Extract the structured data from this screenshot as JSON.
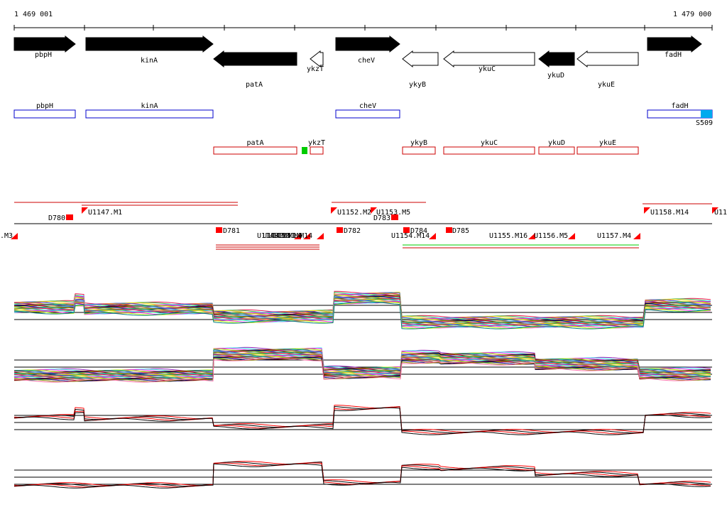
{
  "coordinates": {
    "start": "1 469 001",
    "end": "1 479 000"
  },
  "genes": [
    {
      "name": "pbpH",
      "strand": "+",
      "filled": true
    },
    {
      "name": "kinA",
      "strand": "+",
      "filled": true
    },
    {
      "name": "patA",
      "strand": "-",
      "filled": true
    },
    {
      "name": "ykzT",
      "strand": "-",
      "filled": false
    },
    {
      "name": "cheV",
      "strand": "+",
      "filled": true
    },
    {
      "name": "ykyB",
      "strand": "-",
      "filled": false
    },
    {
      "name": "ykuC",
      "strand": "-",
      "filled": false
    },
    {
      "name": "ykuD",
      "strand": "-",
      "filled": true
    },
    {
      "name": "ykuE",
      "strand": "-",
      "filled": false
    },
    {
      "name": "fadH",
      "strand": "+",
      "filled": true
    }
  ],
  "plus_boxes": [
    "pbpH",
    "kinA",
    "cheV",
    "fadH"
  ],
  "minus_boxes": [
    "patA",
    "ykzT",
    "ykyB",
    "ykuC",
    "ykuD",
    "ykuE"
  ],
  "signal_label": "S509",
  "upper_segments": [
    "U1147.M1",
    "U1152.M2",
    "U1153.M5",
    "U1158.M14",
    "U11"
  ],
  "down_labels": [
    "D780",
    "D783"
  ],
  "lower_segments": [
    ".M3",
    "U1148.M4",
    "U1149.M14",
    "U1150.M4",
    "U1151.M14",
    "U1154.M14",
    "U1155.M16",
    "U1156.M5",
    "U1157.M4"
  ],
  "lower_down_labels": [
    "D781",
    "D782",
    "D784",
    "D785"
  ],
  "colors": {
    "forward": "#0000cc",
    "reverse": "#cc0000",
    "marker": "#ff0000",
    "green": "#00cc00",
    "cyan": "#00aaee"
  }
}
